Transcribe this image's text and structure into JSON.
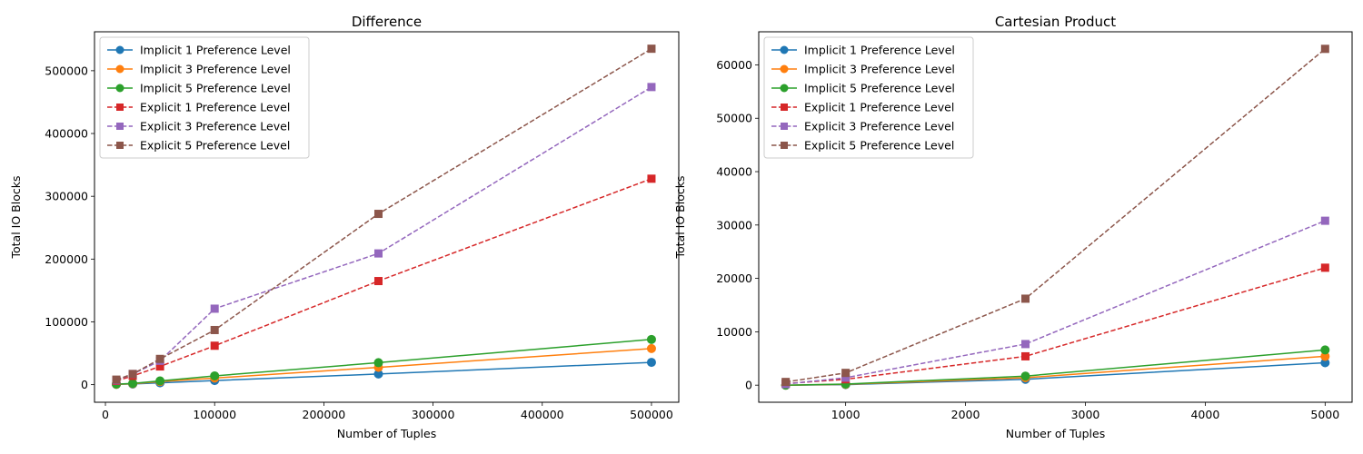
{
  "chart_data": [
    {
      "type": "line",
      "title": "Difference",
      "xlabel": "Number of Tuples",
      "ylabel": "Total IO Blocks",
      "xlim": [
        -10000,
        525000
      ],
      "ylim": [
        -28000,
        562000
      ],
      "xticks": [
        0,
        100000,
        200000,
        300000,
        400000,
        500000
      ],
      "yticks": [
        0,
        100000,
        200000,
        300000,
        400000,
        500000
      ],
      "legend": "top-left",
      "x": [
        10000,
        25000,
        50000,
        100000,
        250000,
        500000
      ],
      "series": [
        {
          "name": "Implicit 1 Preference Level",
          "color": "#1f77b4",
          "marker": "circle",
          "dash": false,
          "values": [
            500,
            1000,
            3000,
            6500,
            17000,
            35500
          ]
        },
        {
          "name": "Implicit 3 Preference Level",
          "color": "#ff7f0e",
          "marker": "circle",
          "dash": false,
          "values": [
            600,
            1500,
            5000,
            10500,
            27500,
            57500
          ]
        },
        {
          "name": "Implicit 5 Preference Level",
          "color": "#2ca02c",
          "marker": "circle",
          "dash": false,
          "values": [
            800,
            2000,
            6000,
            14000,
            35000,
            72000
          ]
        },
        {
          "name": "Explicit 1 Preference Level",
          "color": "#d62728",
          "marker": "square",
          "dash": true,
          "values": [
            6000,
            14000,
            29000,
            62000,
            165000,
            328000
          ]
        },
        {
          "name": "Explicit 3 Preference Level",
          "color": "#9467bd",
          "marker": "square",
          "dash": true,
          "values": [
            7000,
            17000,
            38000,
            121000,
            209000,
            474000
          ]
        },
        {
          "name": "Explicit 5 Preference Level",
          "color": "#8c564b",
          "marker": "square",
          "dash": true,
          "values": [
            8000,
            17000,
            41000,
            87000,
            272000,
            535000
          ]
        }
      ]
    },
    {
      "type": "line",
      "title": "Cartesian Product",
      "xlabel": "Number of Tuples",
      "ylabel": "Total IO Blocks",
      "xlim": [
        275,
        5225
      ],
      "ylim": [
        -3200,
        66200
      ],
      "xticks": [
        1000,
        2000,
        3000,
        4000,
        5000
      ],
      "yticks": [
        0,
        10000,
        20000,
        30000,
        40000,
        50000,
        60000
      ],
      "legend": "top-left",
      "x": [
        500,
        1000,
        2500,
        5000
      ],
      "series": [
        {
          "name": "Implicit 1 Preference Level",
          "color": "#1f77b4",
          "marker": "circle",
          "dash": false,
          "values": [
            0,
            100,
            1100,
            4200
          ]
        },
        {
          "name": "Implicit 3 Preference Level",
          "color": "#ff7f0e",
          "marker": "circle",
          "dash": false,
          "values": [
            0,
            150,
            1400,
            5400
          ]
        },
        {
          "name": "Implicit 5 Preference Level",
          "color": "#2ca02c",
          "marker": "circle",
          "dash": false,
          "values": [
            0,
            200,
            1700,
            6600
          ]
        },
        {
          "name": "Explicit 1 Preference Level",
          "color": "#d62728",
          "marker": "square",
          "dash": true,
          "values": [
            300,
            1100,
            5400,
            22000
          ]
        },
        {
          "name": "Explicit 3 Preference Level",
          "color": "#9467bd",
          "marker": "square",
          "dash": true,
          "values": [
            200,
            1400,
            7700,
            30800
          ]
        },
        {
          "name": "Explicit 5 Preference Level",
          "color": "#8c564b",
          "marker": "square",
          "dash": true,
          "values": [
            600,
            2300,
            16200,
            63000
          ]
        }
      ]
    }
  ]
}
